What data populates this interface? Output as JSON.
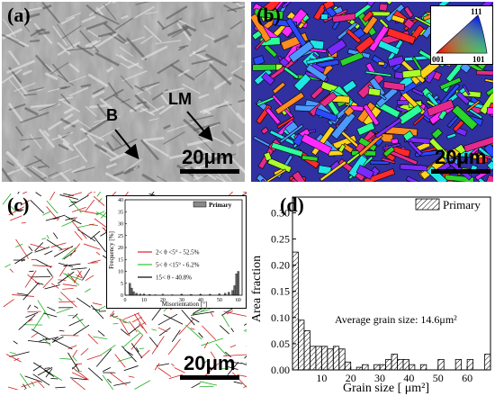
{
  "panel_a": {
    "label": "(a)",
    "annotation_b": "B",
    "annotation_lm": "LM",
    "scale_bar": "20μm"
  },
  "panel_b": {
    "label": "(b)",
    "ipf_top": "111",
    "ipf_left": "001",
    "ipf_right": "101",
    "scale_bar": "20μm"
  },
  "panel_c": {
    "label": "(c)",
    "scale_bar": "20μm",
    "inset": {
      "ylabel": "Frequency [%]",
      "xlabel": "Misorientation [°]",
      "legend": "Primary",
      "yticks": [
        "0",
        "5",
        "10",
        "15",
        "20",
        "25",
        "30",
        "35",
        "40"
      ],
      "xticks": [
        "0",
        "10",
        "20",
        "30",
        "40",
        "50",
        "60"
      ],
      "lines": [
        {
          "text": "2< θ <5° - 52.5%",
          "color": "#e02020"
        },
        {
          "text": "5< θ <15° - 6.2%",
          "color": "#30c030"
        },
        {
          "text": "15< θ  - 40.8%",
          "color": "#000000"
        }
      ]
    }
  },
  "panel_d": {
    "label": "(d)",
    "annotation": "Average grain size: 14.6μm²"
  },
  "chart_data": {
    "type": "bar",
    "title": "",
    "xlabel": "Grain size [ μm²]",
    "ylabel": "Area fraction",
    "legend": "Primary",
    "xlim": [
      0,
      68
    ],
    "ylim": [
      0,
      0.33
    ],
    "xticks": [
      10,
      20,
      30,
      40,
      50,
      60
    ],
    "yticks": [
      0.0,
      0.05,
      0.1,
      0.15,
      0.2,
      0.25,
      0.3
    ],
    "bin_width": 2,
    "bins": [
      {
        "x": 1,
        "y": 0.225
      },
      {
        "x": 3,
        "y": 0.095
      },
      {
        "x": 5,
        "y": 0.075
      },
      {
        "x": 7,
        "y": 0.045
      },
      {
        "x": 9,
        "y": 0.045
      },
      {
        "x": 11,
        "y": 0.045
      },
      {
        "x": 13,
        "y": 0.04
      },
      {
        "x": 15,
        "y": 0.045
      },
      {
        "x": 17,
        "y": 0.04
      },
      {
        "x": 19,
        "y": 0.015
      },
      {
        "x": 23,
        "y": 0.005
      },
      {
        "x": 25,
        "y": 0.01
      },
      {
        "x": 29,
        "y": 0.01
      },
      {
        "x": 31,
        "y": 0.01
      },
      {
        "x": 33,
        "y": 0.02
      },
      {
        "x": 35,
        "y": 0.03
      },
      {
        "x": 37,
        "y": 0.02
      },
      {
        "x": 39,
        "y": 0.02
      },
      {
        "x": 41,
        "y": 0.01
      },
      {
        "x": 45,
        "y": 0.01
      },
      {
        "x": 51,
        "y": 0.02
      },
      {
        "x": 57,
        "y": 0.02
      },
      {
        "x": 61,
        "y": 0.02
      },
      {
        "x": 67,
        "y": 0.03
      }
    ],
    "legend_position": "top-right",
    "grid": false
  },
  "inset_chart_data": {
    "type": "bar",
    "xlim": [
      0,
      62
    ],
    "ylim": [
      0,
      40
    ],
    "bins": [
      {
        "x": 2.5,
        "y": 5
      },
      {
        "x": 3.5,
        "y": 3
      },
      {
        "x": 4.5,
        "y": 1.5
      },
      {
        "x": 6,
        "y": 0.8
      },
      {
        "x": 8,
        "y": 0.5
      },
      {
        "x": 10,
        "y": 0.4
      },
      {
        "x": 13,
        "y": 0.3
      },
      {
        "x": 16,
        "y": 0.2
      },
      {
        "x": 20,
        "y": 0.2
      },
      {
        "x": 25,
        "y": 0.2
      },
      {
        "x": 30,
        "y": 0.3
      },
      {
        "x": 35,
        "y": 0.3
      },
      {
        "x": 40,
        "y": 0.3
      },
      {
        "x": 45,
        "y": 0.4
      },
      {
        "x": 50,
        "y": 0.5
      },
      {
        "x": 53,
        "y": 0.8
      },
      {
        "x": 55,
        "y": 1.2
      },
      {
        "x": 57,
        "y": 2
      },
      {
        "x": 58,
        "y": 4
      },
      {
        "x": 59,
        "y": 9
      },
      {
        "x": 60,
        "y": 10
      }
    ]
  }
}
